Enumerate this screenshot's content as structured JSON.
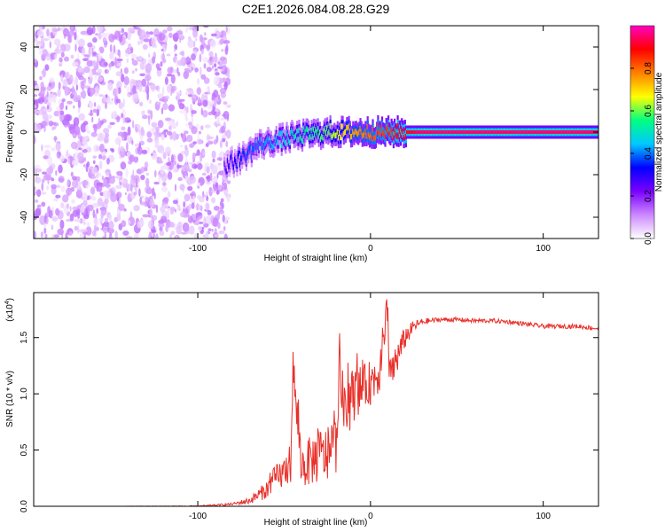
{
  "figure": {
    "title": "C2E1.2026.084.08.28.G29"
  },
  "colorbar": {
    "label": "Normalized spectral amplitude",
    "ticks": [
      "0.0",
      "0.2",
      "0.4",
      "0.6",
      "0.8"
    ],
    "tick_values": [
      0.0,
      0.2,
      0.4,
      0.6,
      0.8
    ],
    "range": [
      0,
      1
    ],
    "colors": [
      "#ffffff",
      "#cc88ff",
      "#7a00ff",
      "#0000ff",
      "#00c8ff",
      "#00ff80",
      "#ffff00",
      "#ff8000",
      "#ff0000",
      "#ff00c0"
    ]
  },
  "chart_data": [
    {
      "type": "heatmap",
      "title": "",
      "xlabel": "Height of straight line (km)",
      "ylabel": "Frequency (Hz)",
      "xlim": [
        -195,
        132
      ],
      "ylim": [
        -50,
        50
      ],
      "x_ticks": [
        -100,
        0,
        100
      ],
      "x_tick_labels": [
        "-100",
        "0",
        "100"
      ],
      "y_ticks": [
        -40,
        -20,
        0,
        20,
        40
      ],
      "y_tick_labels": [
        "-40",
        "-20",
        "0",
        "20",
        "40"
      ],
      "noise_region": {
        "x_from": -195,
        "x_to": -82,
        "freq_from": -50,
        "freq_to": 50,
        "amplitude": 0.1
      },
      "ridge": {
        "x": [
          -85,
          -75,
          -65,
          -55,
          -45,
          -35,
          -25,
          -20,
          -10,
          0,
          10,
          20,
          30,
          60,
          100,
          132
        ],
        "frequency": [
          -16,
          -12,
          -6,
          -4,
          -2,
          -1,
          0,
          0,
          0,
          0,
          0,
          0,
          0,
          0,
          0,
          0
        ],
        "amplitude": [
          0.25,
          0.35,
          0.4,
          0.45,
          0.5,
          0.55,
          0.6,
          0.65,
          0.75,
          0.8,
          0.85,
          0.9,
          0.95,
          0.95,
          0.95,
          0.95
        ]
      }
    },
    {
      "type": "line",
      "title": "",
      "xlabel": "Height of straight line (km)",
      "ylabel": "SNR (10 * v/v)",
      "yscale_label": "(x10",
      "yscale_exponent": "4",
      "xlim": [
        -195,
        132
      ],
      "ylim": [
        0,
        1.9
      ],
      "x_ticks": [
        -100,
        0,
        100
      ],
      "x_tick_labels": [
        "-100",
        "0",
        "100"
      ],
      "y_ticks": [
        0,
        0.5,
        1.0,
        1.5
      ],
      "y_tick_labels": [
        "0.0",
        "0.5",
        "1.0",
        "1.5"
      ],
      "series": [
        {
          "name": "SNR",
          "color": "#e8302a",
          "x": [
            -195,
            -150,
            -100,
            -80,
            -70,
            -60,
            -55,
            -50,
            -46,
            -45,
            -40,
            -35,
            -30,
            -25,
            -20,
            -18,
            -15,
            -10,
            -5,
            0,
            5,
            8,
            9,
            10,
            12,
            15,
            20,
            25,
            30,
            40,
            50,
            60,
            70,
            80,
            90,
            100,
            110,
            120,
            132
          ],
          "y": [
            0.0,
            0.0,
            0.0,
            0.02,
            0.05,
            0.15,
            0.25,
            0.3,
            0.4,
            1.25,
            0.35,
            0.4,
            0.45,
            0.45,
            0.55,
            1.25,
            0.8,
            1.0,
            1.05,
            1.1,
            1.2,
            1.5,
            1.9,
            1.4,
            1.2,
            1.3,
            1.5,
            1.6,
            1.64,
            1.66,
            1.66,
            1.65,
            1.65,
            1.64,
            1.62,
            1.6,
            1.6,
            1.6,
            1.58
          ],
          "noise_amplitude": [
            0.0,
            0.0,
            0.005,
            0.01,
            0.03,
            0.08,
            0.12,
            0.15,
            0.18,
            0.2,
            0.2,
            0.22,
            0.25,
            0.25,
            0.25,
            0.25,
            0.25,
            0.25,
            0.2,
            0.2,
            0.2,
            0.2,
            0.2,
            0.2,
            0.2,
            0.15,
            0.1,
            0.05,
            0.03,
            0.02,
            0.02,
            0.02,
            0.02,
            0.02,
            0.02,
            0.02,
            0.02,
            0.02,
            0.02
          ]
        }
      ]
    }
  ]
}
